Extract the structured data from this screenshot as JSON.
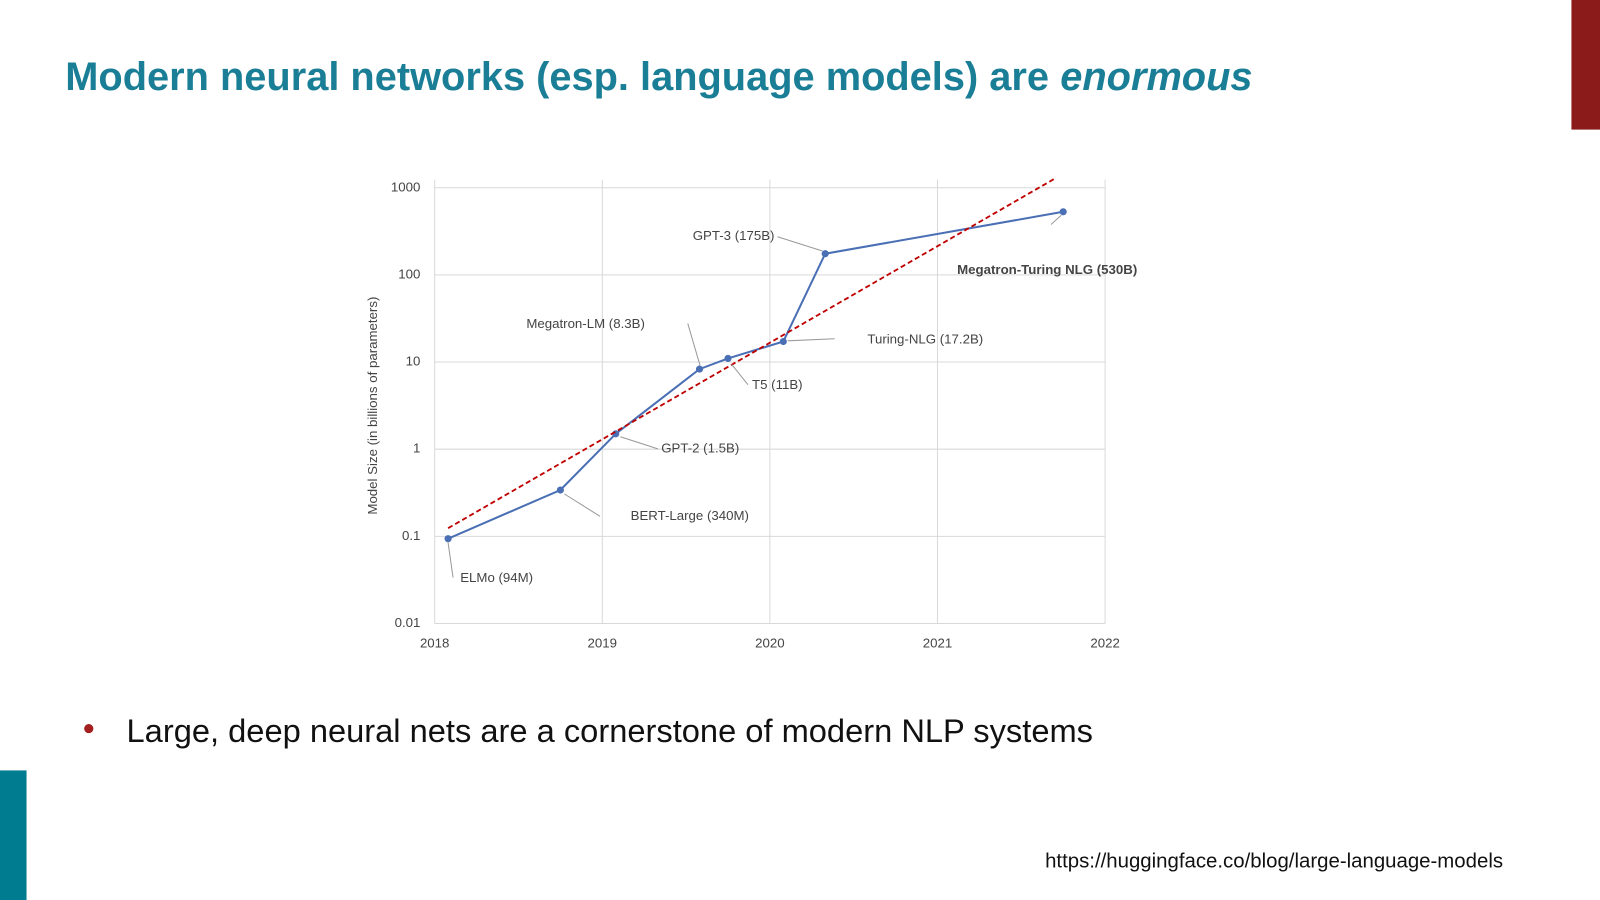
{
  "slide": {
    "title": "Modern neural networks (esp. language models) are",
    "title_emphasis": "enormous",
    "bullets": [
      "Large, deep neural nets are a cornerstone of modern NLP systems"
    ],
    "source": "https://huggingface.co/blog/large-language-models"
  },
  "chart_data": {
    "type": "line",
    "ylabel": "Model Size (in billions of parameters)",
    "x": [
      2018.08,
      2018.75,
      2019.08,
      2019.58,
      2019.75,
      2020.08,
      2020.33,
      2021.75
    ],
    "annotations": [
      "ELMo (94M)",
      "BERT-Large (340M)",
      "GPT-2 (1.5B)",
      "Megatron-LM (8.3B)",
      "T5 (11B)",
      "Turing-NLG (17.2B)",
      "GPT-3 (175B)",
      "Megatron-Turing NLG (530B)"
    ],
    "series": [
      {
        "color": "#4a6fb5",
        "values": [
          0.094,
          0.34,
          1.5,
          8.3,
          11,
          17.2,
          175,
          530
        ]
      },
      {
        "color": "#c00000",
        "style": "dashed",
        "x": [
          2018.08,
          2021.7
        ],
        "values": [
          0.124,
          1275
        ]
      }
    ],
    "xlim": [
      2018,
      2022
    ],
    "xticks": [
      2018,
      2019,
      2020,
      2021,
      2022
    ],
    "ylim": [
      0.01,
      1000
    ],
    "yticks": [
      0.01,
      0.1,
      1,
      10,
      100,
      1000
    ],
    "log_y": true,
    "grid": true
  }
}
